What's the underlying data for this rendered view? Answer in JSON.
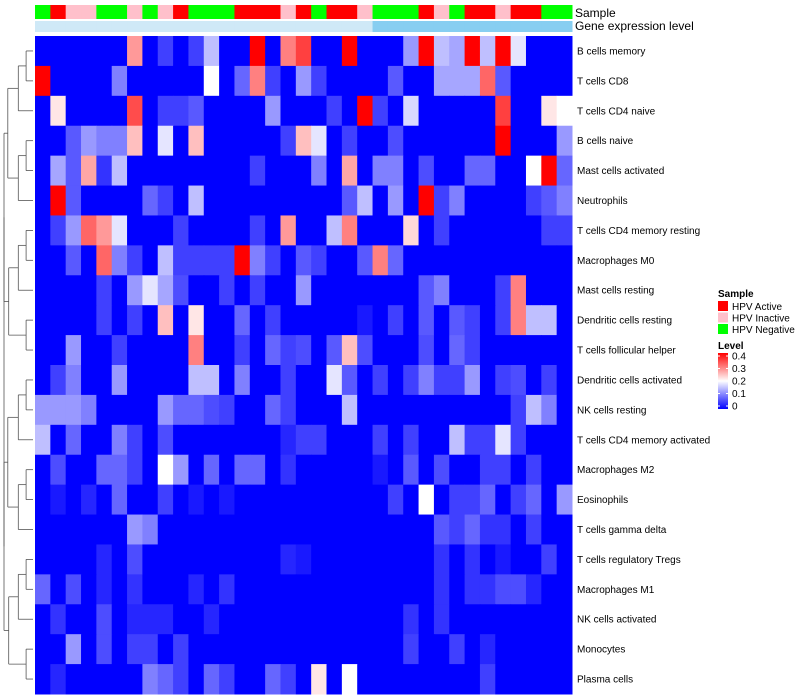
{
  "chart_data": {
    "type": "heatmap",
    "title": "",
    "tracks": [
      {
        "label": "Sample",
        "values": [
          "HPV Negative",
          "HPV Active",
          "HPV Inactive",
          "HPV Inactive",
          "HPV Negative",
          "HPV Negative",
          "HPV Inactive",
          "HPV Negative",
          "HPV Inactive",
          "HPV Active",
          "HPV Negative",
          "HPV Negative",
          "HPV Negative",
          "HPV Active",
          "HPV Active",
          "HPV Active",
          "HPV Inactive",
          "HPV Active",
          "HPV Negative",
          "HPV Active",
          "HPV Active",
          "HPV Inactive",
          "HPV Negative",
          "HPV Negative",
          "HPV Negative",
          "HPV Active",
          "HPV Inactive",
          "HPV Negative",
          "HPV Active",
          "HPV Active",
          "HPV Inactive",
          "HPV Active",
          "HPV Active",
          "HPV Negative",
          "HPV Negative"
        ]
      },
      {
        "label": "Gene expression level",
        "values": [
          "low",
          "low",
          "low",
          "low",
          "low",
          "low",
          "low",
          "low",
          "low",
          "low",
          "low",
          "low",
          "low",
          "low",
          "low",
          "low",
          "low",
          "low",
          "low",
          "low",
          "low",
          "low",
          "high",
          "high",
          "high",
          "high",
          "high",
          "high",
          "high",
          "high",
          "high",
          "high",
          "high",
          "high",
          "high"
        ]
      }
    ],
    "rows": [
      "B cells memory",
      "T cells CD8",
      "T cells CD4 naive",
      "B cells naive",
      "Mast cells activated",
      "Neutrophils",
      "T cells CD4 memory resting",
      "Macrophages M0",
      "Mast cells resting",
      "Dendritic cells resting",
      "T cells follicular helper",
      "Dendritic cells activated",
      "NK cells resting",
      "T cells CD4 memory activated",
      "Macrophages M2",
      "Eosinophils",
      "T cells gamma delta",
      "T cells regulatory  Tregs",
      "Macrophages M1",
      "NK cells activated",
      "Monocytes",
      "Plasma cells"
    ],
    "n_columns": 35,
    "values": [
      [
        0,
        0,
        0,
        0,
        0,
        0,
        0.28,
        0,
        0.05,
        0,
        0.05,
        0.15,
        0,
        0,
        0.4,
        0,
        0.3,
        0.35,
        0,
        0,
        0.4,
        0,
        0,
        0,
        0.12,
        0.4,
        0.15,
        0.13,
        0.4,
        0.15,
        0.4,
        0.18,
        0,
        0,
        0
      ],
      [
        0.4,
        0,
        0,
        0,
        0,
        0.1,
        0,
        0,
        0,
        0,
        0,
        0.2,
        0,
        0.08,
        0.3,
        0.05,
        0,
        0.12,
        0.05,
        0,
        0,
        0,
        0,
        0.07,
        0,
        0,
        0.13,
        0.13,
        0.13,
        0.32,
        0.07,
        0,
        0,
        0,
        0
      ],
      [
        0,
        0.22,
        0,
        0,
        0,
        0,
        0.34,
        0,
        0.05,
        0.05,
        0.07,
        0,
        0,
        0,
        0,
        0.12,
        0,
        0,
        0,
        0.05,
        0,
        0.4,
        0.05,
        0,
        0.17,
        0,
        0,
        0,
        0,
        0,
        0.35,
        0,
        0,
        0.22,
        0.2
      ],
      [
        0,
        0,
        0.07,
        0.12,
        0.1,
        0.1,
        0.25,
        0,
        0.18,
        0,
        0.25,
        0,
        0,
        0,
        0,
        0,
        0.05,
        0.25,
        0.18,
        0,
        0.05,
        0,
        0,
        0.06,
        0,
        0,
        0,
        0,
        0,
        0,
        0.4,
        0,
        0,
        0,
        0.12
      ],
      [
        0,
        0.13,
        0.07,
        0.27,
        0.04,
        0.15,
        0,
        0,
        0,
        0,
        0,
        0,
        0,
        0,
        0.05,
        0,
        0,
        0,
        0.1,
        0,
        0.27,
        0,
        0.1,
        0.1,
        0,
        0.06,
        0,
        0,
        0.08,
        0.08,
        0,
        0,
        0.2,
        0.4,
        0.08
      ],
      [
        0,
        0.4,
        0.07,
        0,
        0,
        0,
        0,
        0.08,
        0.05,
        0,
        0.15,
        0,
        0,
        0,
        0,
        0,
        0,
        0,
        0,
        0,
        0.07,
        0.15,
        0,
        0.12,
        0,
        0.4,
        0.05,
        0.1,
        0,
        0,
        0,
        0,
        0.05,
        0.07,
        0.1
      ],
      [
        0,
        0.05,
        0.12,
        0.32,
        0.28,
        0.18,
        0,
        0,
        0,
        0.05,
        0,
        0,
        0,
        0,
        0.05,
        0,
        0.28,
        0,
        0,
        0.15,
        0.3,
        0,
        0,
        0,
        0.23,
        0,
        0.05,
        0,
        0,
        0,
        0,
        0,
        0,
        0.05,
        0.05
      ],
      [
        0,
        0,
        0.07,
        0,
        0.32,
        0.1,
        0.05,
        0,
        0.15,
        0.05,
        0.05,
        0.05,
        0.05,
        0.4,
        0.1,
        0.05,
        0,
        0.07,
        0.05,
        0,
        0,
        0.07,
        0.3,
        0.08,
        0,
        0,
        0,
        0,
        0,
        0,
        0,
        0,
        0,
        0,
        0
      ],
      [
        0,
        0,
        0,
        0,
        0.05,
        0,
        0.12,
        0.18,
        0.13,
        0.06,
        0,
        0,
        0.05,
        0,
        0.05,
        0,
        0,
        0.12,
        0,
        0,
        0,
        0,
        0,
        0,
        0,
        0.07,
        0.1,
        0,
        0,
        0,
        0.05,
        0.3,
        0,
        0,
        0
      ],
      [
        0,
        0,
        0,
        0,
        0.05,
        0,
        0.05,
        0,
        0.25,
        0,
        0.22,
        0,
        0,
        0.08,
        0,
        0.05,
        0,
        0,
        0,
        0,
        0,
        0.02,
        0,
        0.05,
        0,
        0.07,
        0,
        0.07,
        0.05,
        0,
        0.05,
        0.3,
        0.15,
        0.15,
        0
      ],
      [
        0,
        0,
        0.12,
        0,
        0,
        0.05,
        0,
        0,
        0,
        0,
        0.3,
        0,
        0,
        0.05,
        0,
        0.08,
        0.05,
        0.06,
        0,
        0.07,
        0.25,
        0.06,
        0,
        0,
        0,
        0.06,
        0,
        0.08,
        0.05,
        0,
        0,
        0,
        0,
        0,
        0
      ],
      [
        0,
        0.05,
        0.1,
        0,
        0,
        0.12,
        0,
        0,
        0,
        0,
        0.15,
        0.15,
        0,
        0.1,
        0,
        0,
        0.05,
        0,
        0,
        0.18,
        0.07,
        0,
        0.05,
        0,
        0.05,
        0.1,
        0.05,
        0.05,
        0.12,
        0,
        0.05,
        0.06,
        0,
        0.05,
        0
      ],
      [
        0.12,
        0.12,
        0.12,
        0.1,
        0,
        0,
        0,
        0,
        0.12,
        0.08,
        0.08,
        0.06,
        0.05,
        0,
        0,
        0.08,
        0.05,
        0,
        0,
        0,
        0.15,
        0,
        0,
        0,
        0,
        0,
        0,
        0,
        0,
        0,
        0,
        0.05,
        0.15,
        0.1,
        0
      ],
      [
        0.15,
        0,
        0.08,
        0,
        0,
        0.1,
        0.05,
        0,
        0.06,
        0,
        0,
        0,
        0,
        0,
        0,
        0,
        0.03,
        0.05,
        0.05,
        0,
        0,
        0,
        0.05,
        0,
        0.05,
        0,
        0,
        0.15,
        0.05,
        0.05,
        0.18,
        0.05,
        0,
        0,
        0
      ],
      [
        0,
        0.06,
        0,
        0,
        0.08,
        0.08,
        0.05,
        0,
        0.2,
        0.12,
        0,
        0.08,
        0,
        0.08,
        0.08,
        0,
        0.04,
        0,
        0,
        0,
        0,
        0,
        0.02,
        0,
        0.07,
        0,
        0.06,
        0,
        0,
        0.05,
        0.05,
        0,
        0.05,
        0,
        0
      ],
      [
        0,
        0.02,
        0,
        0.03,
        0,
        0.08,
        0,
        0,
        0.05,
        0,
        0.02,
        0,
        0.02,
        0,
        0,
        0,
        0,
        0,
        0,
        0,
        0,
        0,
        0,
        0.05,
        0,
        0.2,
        0,
        0.05,
        0.05,
        0.08,
        0,
        0.05,
        0.08,
        0,
        0.12
      ],
      [
        0,
        0,
        0,
        0,
        0,
        0,
        0.12,
        0.1,
        0,
        0,
        0,
        0,
        0,
        0,
        0,
        0,
        0,
        0,
        0,
        0,
        0,
        0,
        0,
        0,
        0,
        0,
        0.07,
        0.05,
        0.08,
        0.04,
        0.04,
        0,
        0.05,
        0,
        0
      ],
      [
        0,
        0,
        0,
        0,
        0.03,
        0,
        0.06,
        0,
        0,
        0,
        0,
        0,
        0,
        0,
        0,
        0,
        0.03,
        0.02,
        0,
        0,
        0,
        0,
        0,
        0,
        0,
        0,
        0.04,
        0,
        0.04,
        0,
        0.02,
        0,
        0,
        0.05,
        0
      ],
      [
        0.08,
        0,
        0.06,
        0,
        0.03,
        0,
        0.04,
        0,
        0,
        0,
        0.03,
        0,
        0.04,
        0,
        0,
        0,
        0,
        0,
        0,
        0,
        0,
        0,
        0,
        0,
        0,
        0,
        0.04,
        0,
        0.04,
        0.04,
        0.06,
        0.06,
        0.03,
        0,
        0
      ],
      [
        0,
        0.04,
        0,
        0,
        0.06,
        0,
        0.03,
        0.03,
        0.03,
        0,
        0,
        0.03,
        0,
        0,
        0,
        0,
        0,
        0,
        0,
        0,
        0,
        0,
        0,
        0,
        0.04,
        0,
        0.04,
        0,
        0,
        0,
        0,
        0,
        0,
        0,
        0
      ],
      [
        0,
        0,
        0.12,
        0,
        0.06,
        0,
        0.05,
        0.05,
        0,
        0.05,
        0,
        0,
        0,
        0,
        0,
        0,
        0,
        0,
        0,
        0,
        0,
        0,
        0,
        0,
        0.05,
        0,
        0,
        0.05,
        0,
        0.03,
        0,
        0,
        0,
        0,
        0
      ],
      [
        0,
        0.03,
        0,
        0,
        0,
        0,
        0,
        0.1,
        0.08,
        0.05,
        0,
        0.08,
        0.05,
        0,
        0,
        0.08,
        0.05,
        0,
        0.22,
        0,
        0.2,
        0,
        0,
        0,
        0,
        0,
        0,
        0,
        0,
        0.05,
        0,
        0,
        0,
        0,
        0
      ]
    ],
    "legend_sample": {
      "title": "Sample",
      "entries": [
        {
          "label": "HPV Active",
          "color": "#ff0000"
        },
        {
          "label": "HPV Inactive",
          "color": "#ffc0cb"
        },
        {
          "label": "HPV Negative",
          "color": "#00ff00"
        }
      ]
    },
    "legend_level": {
      "title": "Level",
      "ticks": [
        0.4,
        0.3,
        0.2,
        0.1,
        0
      ],
      "tick_labels": [
        "0.4",
        "0.3",
        "0.2",
        "0.1",
        "0"
      ],
      "range": [
        0,
        0.4
      ],
      "colors": {
        "low": "#0000ff",
        "mid": "#ffffff",
        "high": "#ff0000"
      }
    },
    "expression_colors": {
      "low": "#cfe9f7",
      "high": "#87cef1"
    },
    "dendrogram": "row"
  }
}
